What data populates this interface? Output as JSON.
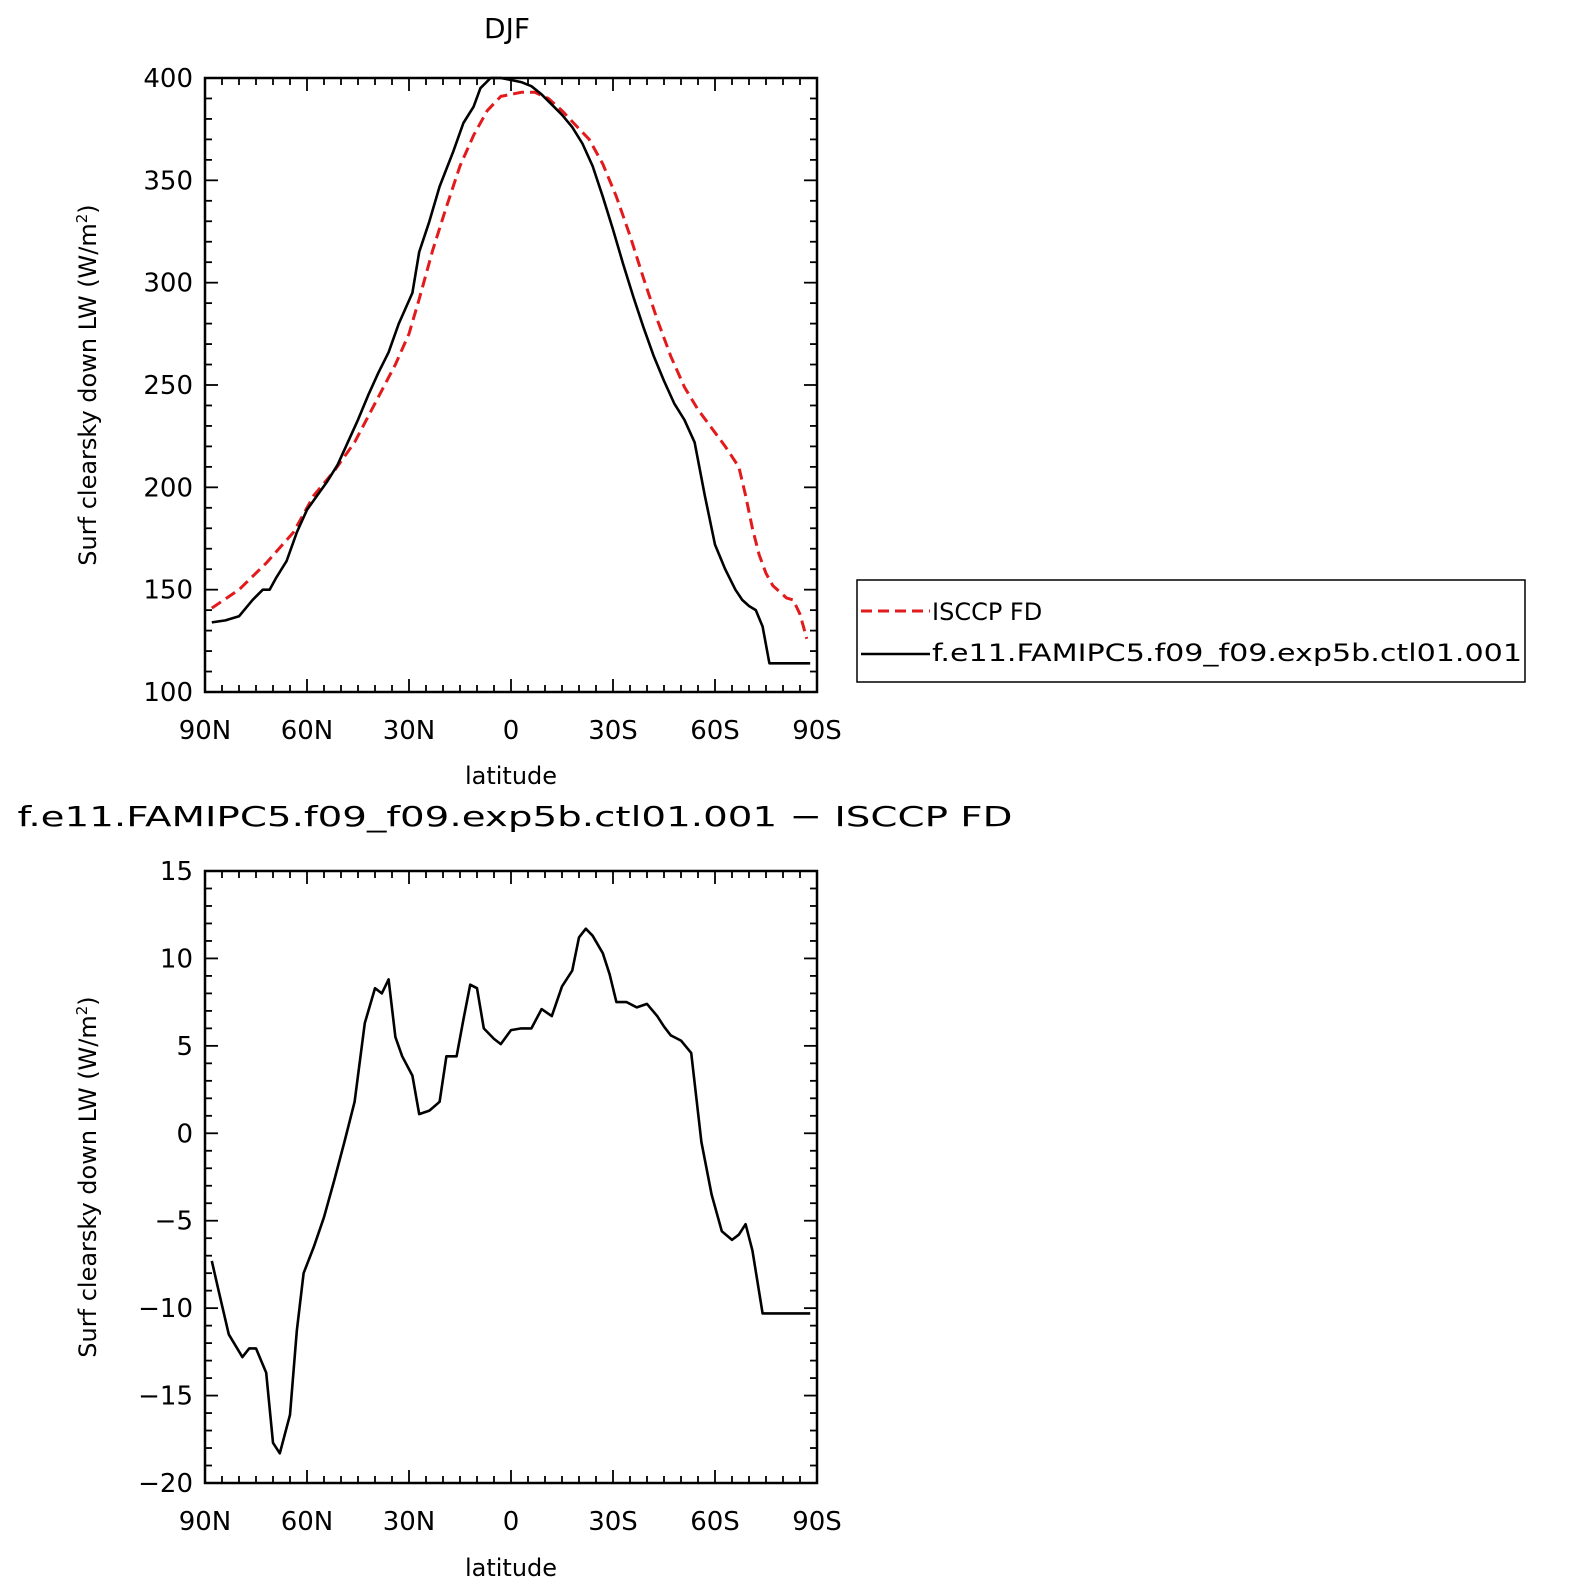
{
  "chart_data": [
    {
      "type": "line",
      "title": "DJF",
      "xlabel": "latitude",
      "ylabel": "Surf clearsky down LW (W/m",
      "ylabel_sup": "2",
      "ylabel_end": ")",
      "xlim": [
        90,
        -90
      ],
      "ylim": [
        100,
        400
      ],
      "xticks": [
        {
          "value": 90,
          "label": "90N"
        },
        {
          "value": 60,
          "label": "60N"
        },
        {
          "value": 30,
          "label": "30N"
        },
        {
          "value": 0,
          "label": "0"
        },
        {
          "value": -30,
          "label": "30S"
        },
        {
          "value": -60,
          "label": "60S"
        },
        {
          "value": -90,
          "label": "90S"
        }
      ],
      "yticks": [
        100,
        150,
        200,
        250,
        300,
        350,
        400
      ],
      "series": [
        {
          "name": "ISCCP FD",
          "color": "#e31a1c",
          "dash": true,
          "x": [
            88,
            80,
            72,
            64,
            58,
            52,
            46,
            40,
            34,
            30,
            27,
            23,
            19,
            15,
            11,
            7,
            3,
            0,
            -3,
            -7,
            -11,
            -15,
            -19,
            -23,
            -27,
            -31,
            -35,
            -39,
            -43,
            -47,
            -51,
            -55,
            -59,
            -63,
            -67,
            -69,
            -71,
            -73,
            -75,
            -77,
            -79,
            -81,
            -83,
            -85,
            -87
          ],
          "y": [
            141,
            150,
            163,
            178,
            196,
            208,
            222,
            241,
            260,
            275,
            292,
            316,
            337,
            357,
            372,
            384,
            391,
            392,
            393,
            393,
            390,
            384,
            377,
            370,
            358,
            342,
            323,
            302,
            282,
            264,
            249,
            238,
            229,
            220,
            210,
            196,
            180,
            167,
            158,
            152,
            149,
            146,
            145,
            138,
            126
          ]
        },
        {
          "name": "f.e11.FAMIPC5.f09_f09.exp5b.ctl01.001",
          "color": "#000000",
          "dash": false,
          "x": [
            88,
            84,
            80,
            76,
            73,
            71,
            69,
            66,
            63,
            60,
            57,
            54,
            51,
            48,
            45,
            42,
            39,
            36,
            33,
            29,
            27,
            24,
            21,
            17,
            14,
            11,
            9,
            6,
            3,
            0,
            -3,
            -6,
            -9,
            -12,
            -15,
            -18,
            -21,
            -24,
            -27,
            -30,
            -33,
            -36,
            -39,
            -42,
            -45,
            -48,
            -51,
            -54,
            -57,
            -60,
            -63,
            -66,
            -68,
            -70,
            -72,
            -74,
            -76,
            -78,
            -80,
            -82,
            -84,
            -86,
            -88
          ],
          "y": [
            134,
            135,
            137,
            145,
            150,
            150,
            156,
            164,
            178,
            189,
            196,
            203,
            211,
            222,
            233,
            245,
            256,
            266,
            280,
            295,
            315,
            330,
            347,
            364,
            378,
            386,
            395,
            400,
            400,
            399,
            398,
            396,
            392,
            387,
            382,
            376,
            368,
            357,
            342,
            326,
            309,
            293,
            278,
            264,
            252,
            241,
            233,
            222,
            196,
            172,
            160,
            150,
            145,
            142,
            140,
            132,
            114,
            114,
            114,
            114,
            114,
            114,
            114
          ]
        }
      ],
      "legend_position": "right"
    },
    {
      "type": "line",
      "title": "f.e11.FAMIPC5.f09_f09.exp5b.ctl01.001 − ISCCP FD",
      "xlabel": "latitude",
      "ylabel": "Surf clearsky down LW (W/m",
      "ylabel_sup": "2",
      "ylabel_end": ")",
      "xlim": [
        90,
        -90
      ],
      "ylim": [
        -20,
        15
      ],
      "xticks": [
        {
          "value": 90,
          "label": "90N"
        },
        {
          "value": 60,
          "label": "60N"
        },
        {
          "value": 30,
          "label": "30N"
        },
        {
          "value": 0,
          "label": "0"
        },
        {
          "value": -30,
          "label": "30S"
        },
        {
          "value": -60,
          "label": "60S"
        },
        {
          "value": -90,
          "label": "90S"
        }
      ],
      "yticks": [
        -20,
        -15,
        -10,
        -5,
        0,
        5,
        10,
        15
      ],
      "series": [
        {
          "color": "#000000",
          "dash": false,
          "x": [
            88,
            86,
            83,
            79,
            77,
            75,
            72,
            70,
            68,
            65,
            63,
            61,
            58,
            55,
            52,
            49,
            46,
            43,
            40,
            38,
            36,
            34,
            32,
            29,
            27,
            24,
            21,
            19,
            16,
            14,
            12,
            10,
            8,
            5,
            3,
            0,
            -3,
            -6,
            -9,
            -12,
            -15,
            -18,
            -20,
            -22,
            -24,
            -27,
            -29,
            -31,
            -34,
            -37,
            -40,
            -43,
            -45,
            -47,
            -50,
            -53,
            -56,
            -59,
            -62,
            -65,
            -67,
            -69,
            -71,
            -74,
            -77,
            -79,
            -82,
            -84,
            -86,
            -88
          ],
          "y": [
            -7.3,
            -9,
            -11.5,
            -12.8,
            -12.3,
            -12.3,
            -13.7,
            -17.7,
            -18.3,
            -16.1,
            -11.3,
            -8,
            -6.5,
            -4.8,
            -2.7,
            -0.5,
            1.8,
            6.3,
            8.3,
            8,
            8.8,
            5.5,
            4.4,
            3.3,
            1.1,
            1.3,
            1.8,
            4.4,
            4.4,
            6.5,
            8.5,
            8.3,
            6,
            5.4,
            5.1,
            5.9,
            6,
            6,
            7.1,
            6.7,
            8.4,
            9.3,
            11.2,
            11.7,
            11.3,
            10.3,
            9.1,
            7.5,
            7.5,
            7.2,
            7.4,
            6.7,
            6.1,
            5.6,
            5.3,
            4.6,
            -0.5,
            -3.5,
            -5.6,
            -6.1,
            -5.8,
            -5.2,
            -6.7,
            -10.3,
            -10.3,
            -10.3,
            -10.3,
            -10.3,
            -10.3,
            -10.3
          ]
        }
      ]
    }
  ]
}
